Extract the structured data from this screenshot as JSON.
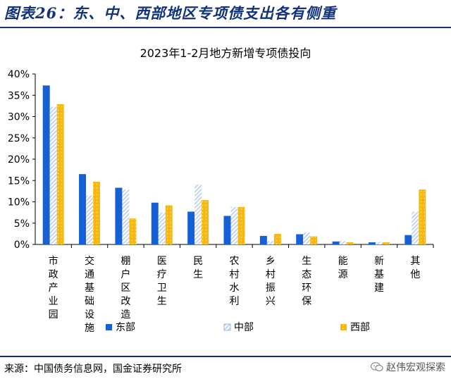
{
  "figure": {
    "title": "图表26：东、中、西部地区专项债支出各有侧重",
    "source": "来源：中国债务信息网，国金证券研究所",
    "watermark": "赵伟宏观探索"
  },
  "chart_data": {
    "type": "bar",
    "title": "2023年1-2月地方新增专项债投向",
    "categories": [
      "市政产业园",
      "交通基础设施",
      "棚户区改造",
      "医疗卫生",
      "民生",
      "农村水利",
      "乡村振兴",
      "生态环保",
      "能源",
      "新基建",
      "其他"
    ],
    "series": [
      {
        "name": "东部",
        "values": [
          37.3,
          16.5,
          13.3,
          9.8,
          7.7,
          6.7,
          2.0,
          2.4,
          0.7,
          0.5,
          2.2
        ],
        "color": "#1560d4",
        "pattern": "solid"
      },
      {
        "name": "中部",
        "values": [
          32.3,
          11.5,
          12.9,
          7.5,
          14.1,
          8.8,
          0.8,
          2.8,
          0.8,
          0.6,
          7.7
        ],
        "color": "#c5d6ef",
        "pattern": "hatched"
      },
      {
        "name": "西部",
        "values": [
          32.9,
          14.7,
          6.1,
          9.2,
          10.4,
          8.8,
          2.5,
          1.9,
          0.5,
          0.5,
          12.9
        ],
        "color": "#f6b913",
        "pattern": "dotted"
      }
    ],
    "yticks": [
      "0%",
      "5%",
      "10%",
      "15%",
      "20%",
      "25%",
      "30%",
      "35%",
      "40%"
    ],
    "ylim": [
      0,
      40
    ],
    "legend_position": "bottom",
    "grid": false
  }
}
